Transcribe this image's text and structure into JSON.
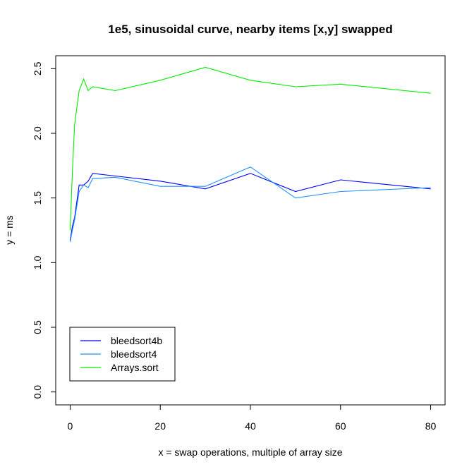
{
  "chart_data": {
    "type": "line",
    "title": "1e5, sinusoidal curve, nearby items [x,y] swapped",
    "xlabel": "x = swap operations, multiple of array size",
    "ylabel": "y = ms",
    "xlim": [
      -3.2,
      83.2
    ],
    "ylim": [
      -0.1,
      2.6
    ],
    "x_ticks": [
      0,
      20,
      40,
      60,
      80
    ],
    "y_ticks": [
      0.0,
      0.5,
      1.0,
      1.5,
      2.0,
      2.5
    ],
    "x_tick_labels": [
      "0",
      "20",
      "40",
      "60",
      "80"
    ],
    "y_tick_labels": [
      "0.0",
      "0.5",
      "1.0",
      "1.5",
      "2.0",
      "2.5"
    ],
    "grid": false,
    "legend_position": "bottom-left",
    "x": [
      0,
      0.5,
      1,
      2,
      3,
      4,
      5,
      10,
      20,
      30,
      40,
      50,
      60,
      80
    ],
    "series": [
      {
        "name": "bleedsort4b",
        "color": "#0000ff",
        "values": [
          1.17,
          1.28,
          1.35,
          1.6,
          1.6,
          1.63,
          1.69,
          1.67,
          1.63,
          1.57,
          1.69,
          1.55,
          1.64,
          1.57
        ]
      },
      {
        "name": "bleedsort4",
        "color": "#1e90ff",
        "values": [
          1.16,
          1.25,
          1.33,
          1.55,
          1.6,
          1.58,
          1.65,
          1.66,
          1.59,
          1.59,
          1.74,
          1.5,
          1.55,
          1.58
        ]
      },
      {
        "name": "Arrays.sort",
        "color": "#00ee00",
        "values": [
          1.25,
          1.7,
          2.07,
          2.33,
          2.42,
          2.33,
          2.36,
          2.33,
          2.41,
          2.51,
          2.41,
          2.36,
          2.38,
          2.31
        ]
      }
    ]
  }
}
